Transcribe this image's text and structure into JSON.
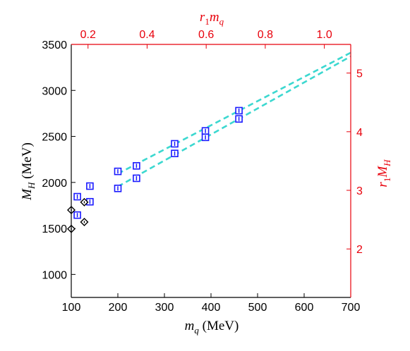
{
  "chart_data": {
    "type": "scatter",
    "title": "",
    "axes": {
      "bottom": {
        "label_main": "m",
        "label_sub": "q",
        "label_unit": " (MeV)",
        "lim": [
          100,
          700
        ],
        "ticks": [
          "100",
          "200",
          "300",
          "400",
          "500",
          "600",
          "700"
        ]
      },
      "left": {
        "label_main": "M",
        "label_sub": "H",
        "label_unit": " (MeV)",
        "lim": [
          750,
          3500
        ],
        "ticks": [
          "1000",
          "1500",
          "2000",
          "2500",
          "3000",
          "3500"
        ]
      },
      "top": {
        "label_main": "r",
        "label_sub1": "1",
        "label_main2": "m",
        "label_sub2": "q",
        "lim": [
          0.1433,
          1.0893
        ],
        "ticks": [
          "0.2",
          "0.4",
          "0.6",
          "0.8",
          "1.0"
        ],
        "color": "#e8000b"
      },
      "right": {
        "label_main": "r",
        "label_sub1": "1",
        "label_main2": "M",
        "label_sub2": "H",
        "lim": [
          1.173,
          5.489
        ],
        "ticks": [
          "2",
          "3",
          "4",
          "5"
        ],
        "color": "#e8000b"
      }
    },
    "series": [
      {
        "marker": "square-with-errorbar",
        "color": "#1a1aff",
        "points": [
          {
            "x": 113,
            "y": 1845
          },
          {
            "x": 113,
            "y": 1645
          },
          {
            "x": 140,
            "y": 1960
          },
          {
            "x": 140,
            "y": 1790
          },
          {
            "x": 200,
            "y": 2120
          },
          {
            "x": 200,
            "y": 1935
          },
          {
            "x": 240,
            "y": 2180
          },
          {
            "x": 240,
            "y": 2045
          },
          {
            "x": 322,
            "y": 2420
          },
          {
            "x": 322,
            "y": 2315
          },
          {
            "x": 388,
            "y": 2560
          },
          {
            "x": 388,
            "y": 2490
          },
          {
            "x": 460,
            "y": 2780
          },
          {
            "x": 460,
            "y": 2690
          }
        ]
      },
      {
        "marker": "diamond",
        "color": "#000000",
        "points": [
          {
            "x": 100,
            "y": 1700
          },
          {
            "x": 100,
            "y": 1495
          },
          {
            "x": 128,
            "y": 1785
          },
          {
            "x": 128,
            "y": 1570
          }
        ]
      },
      {
        "type": "line",
        "style": "dashed",
        "color": "#3cd8d0",
        "lines": [
          [
            {
              "x": 200,
              "y": 2095
            },
            {
              "x": 700,
              "y": 3410
            }
          ],
          [
            {
              "x": 200,
              "y": 1955
            },
            {
              "x": 700,
              "y": 3370
            }
          ]
        ]
      }
    ]
  }
}
